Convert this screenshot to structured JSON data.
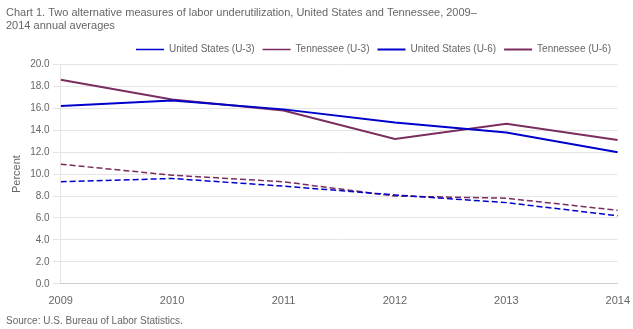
{
  "chart_data": {
    "type": "line",
    "title": [
      "Chart 1. Two alternative measures of labor underutilization, United States and Tennessee, 2009–",
      "2014 annual averages"
    ],
    "y_label": "Percent",
    "annotations": [
      "Source: U.S. Bureau of Labor Statistics."
    ],
    "x": [
      2009,
      2010,
      2011,
      2012,
      2013,
      2014
    ],
    "xlim": [
      2009,
      2014
    ],
    "xticks": [
      2009,
      2010,
      2011,
      2012,
      2013,
      2014
    ],
    "ylim": [
      0.0,
      20.0
    ],
    "yticks": [
      {
        "value": 0,
        "label": "0.0"
      },
      {
        "value": 2,
        "label": "2.0"
      },
      {
        "value": 4,
        "label": "4.0"
      },
      {
        "value": 6,
        "label": "6.0"
      },
      {
        "value": 8,
        "label": "8.0"
      },
      {
        "value": 10,
        "label": "10.0"
      },
      {
        "value": 12,
        "label": "12.0"
      },
      {
        "value": 14,
        "label": "14.0"
      },
      {
        "value": 16,
        "label": "16.0"
      },
      {
        "value": 18,
        "label": "18.0"
      },
      {
        "value": 20,
        "label": "20.0"
      }
    ],
    "grid": "y",
    "legend": "upper right",
    "series": [
      {
        "name": "United States (U-3)",
        "color": "#0000CD",
        "line_style": "dashed",
        "marker": "none",
        "values": [
          9.3,
          9.6,
          8.9,
          8.1,
          7.4,
          6.2
        ]
      },
      {
        "name": "Tennessee (U-3)",
        "color": "#7B2D5E",
        "line_style": "dashed",
        "marker": "none",
        "values": [
          10.9,
          9.9,
          9.3,
          8.0,
          7.8,
          6.7
        ]
      },
      {
        "name": "United States (U-6)",
        "color": "#0000CD",
        "line_style": "solid",
        "marker": "none",
        "values": [
          16.2,
          16.7,
          15.9,
          14.7,
          13.8,
          12.0
        ]
      },
      {
        "name": "Tennessee (U-6)",
        "color": "#7B2D5E",
        "line_style": "solid",
        "marker": "none",
        "values": [
          18.6,
          16.8,
          15.8,
          13.2,
          14.6,
          13.1
        ]
      }
    ]
  }
}
